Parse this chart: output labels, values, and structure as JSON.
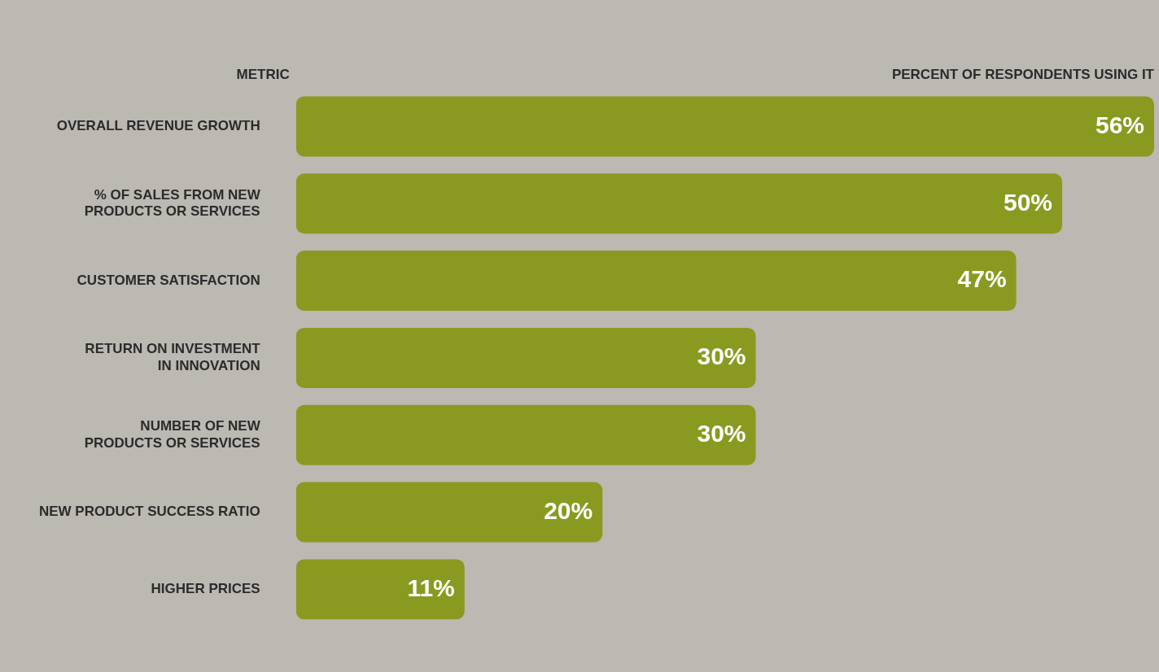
{
  "chart_data": {
    "type": "bar",
    "orientation": "horizontal",
    "xlabel": "PERCENT OF RESPONDENTS USING IT",
    "ylabel": "METRIC",
    "categories": [
      "OVERALL REVENUE GROWTH",
      "% OF SALES FROM NEW PRODUCTS OR SERVICES",
      "CUSTOMER SATISFACTION",
      "RETURN ON INVESTMENT IN INNOVATION",
      "NUMBER OF NEW PRODUCTS OR SERVICES",
      "NEW PRODUCT SUCCESS RATIO",
      "HIGHER PRICES"
    ],
    "values": [
      56,
      50,
      47,
      30,
      30,
      20,
      11
    ],
    "value_labels": [
      "56%",
      "50%",
      "47%",
      "30%",
      "30%",
      "20%",
      "11%"
    ],
    "color": "#8a9a20",
    "grid": false,
    "legend": false
  }
}
